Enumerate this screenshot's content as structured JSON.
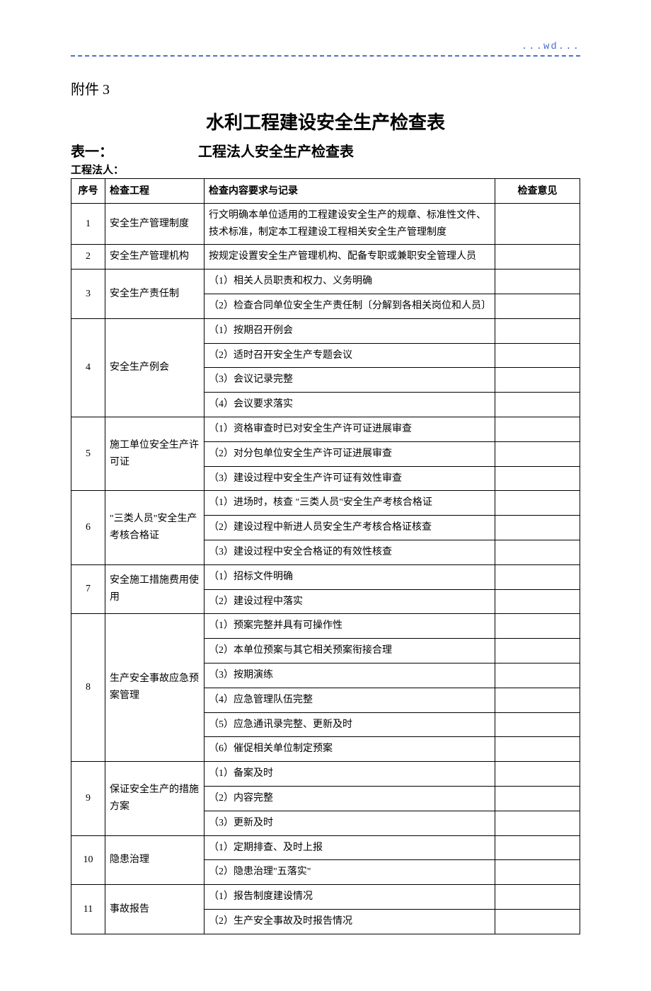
{
  "header_mark": "...wd...",
  "attachment_label": "附件 3",
  "main_title": "水利工程建设安全生产检查表",
  "table_one_label": "表一：",
  "sub_title": "工程法人安全生产检查表",
  "legal_person_label": "工程法人：",
  "columns": {
    "seq": "序号",
    "item": "检查工程",
    "content": "检查内容要求与记录",
    "opinion": "检查意见"
  },
  "rows": [
    {
      "seq": "1",
      "item": "安全生产管理制度",
      "contents": [
        "行文明确本单位适用的工程建设安全生产的规章、标准性文件、技术标准，制定本工程建设工程相关安全生产管理制度"
      ]
    },
    {
      "seq": "2",
      "item": "安全生产管理机构",
      "contents": [
        "按规定设置安全生产管理机构、配备专职或兼职安全管理人员"
      ]
    },
    {
      "seq": "3",
      "item": "安全生产责任制",
      "contents": [
        "（1）相关人员职责和权力、义务明确",
        "（2）检查合同单位安全生产责任制〔分解到各相关岗位和人员〕"
      ]
    },
    {
      "seq": "4",
      "item": "安全生产例会",
      "contents": [
        "（1）按期召开例会",
        "（2）适时召开安全生产专题会议",
        "（3）会议记录完整",
        "（4）会议要求落实"
      ]
    },
    {
      "seq": "5",
      "item": "施工单位安全生产许可证",
      "contents": [
        "（1）资格审查时已对安全生产许可证进展审查",
        "（2）对分包单位安全生产许可证进展审查",
        "（3）建设过程中安全生产许可证有效性审查"
      ]
    },
    {
      "seq": "6",
      "item": "\"三类人员\"安全生产考核合格证",
      "contents": [
        "（1）进场时，核查 \"三类人员\"安全生产考核合格证",
        "（2）建设过程中新进人员安全生产考核合格证核查",
        "（3）建设过程中安全合格证的有效性核查"
      ]
    },
    {
      "seq": "7",
      "item": "安全施工措施费用使用",
      "contents": [
        "（1）招标文件明确",
        "（2）建设过程中落实"
      ]
    },
    {
      "seq": "8",
      "item": "生产安全事故应急预案管理",
      "contents": [
        "（1）预案完整并具有可操作性",
        "（2）本单位预案与其它相关预案衔接合理",
        "（3）按期演练",
        "（4）应急管理队伍完整",
        "（5）应急通讯录完整、更新及时",
        "（6）催促相关单位制定预案"
      ]
    },
    {
      "seq": "9",
      "item": "保证安全生产的措施方案",
      "contents": [
        "（1）备案及时",
        "（2）内容完整",
        "（3）更新及时"
      ]
    },
    {
      "seq": "10",
      "item": "隐患治理",
      "contents": [
        "（1）定期排查、及时上报",
        "（2）隐患治理\"五落实\""
      ]
    },
    {
      "seq": "11",
      "item": "事故报告",
      "contents": [
        "（1）报告制度建设情况",
        "（2）生产安全事故及时报告情况"
      ]
    }
  ]
}
